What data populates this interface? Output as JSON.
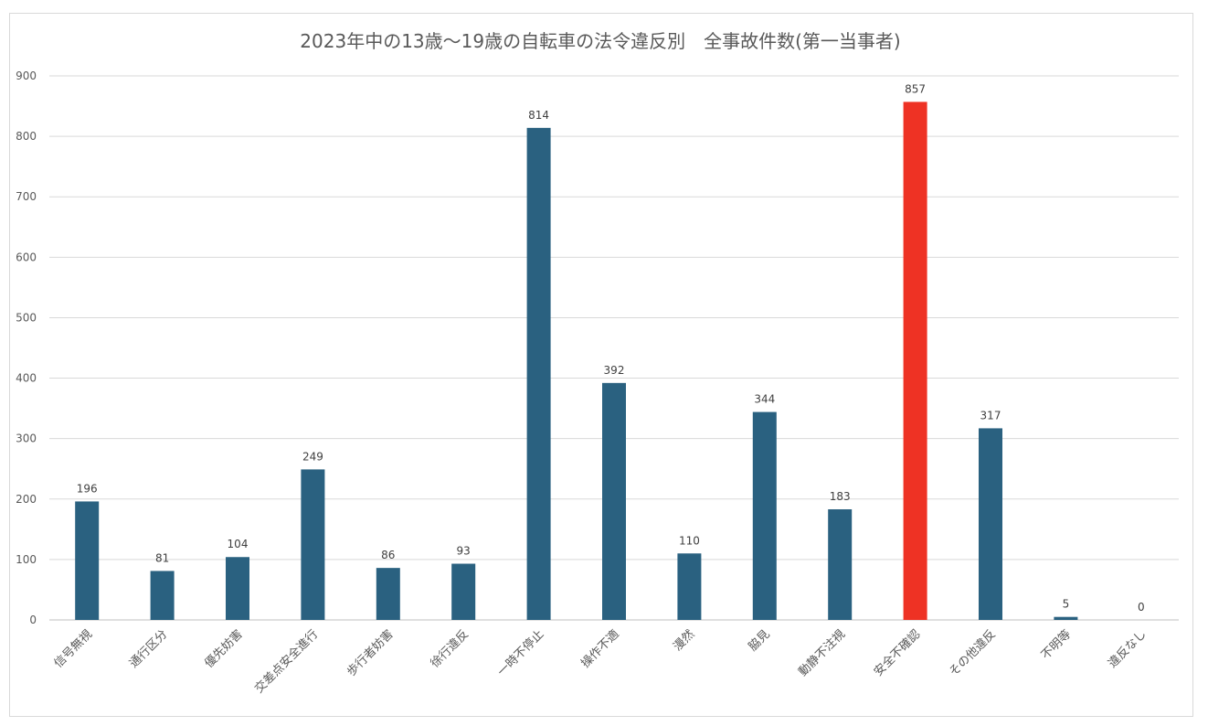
{
  "chart_data": {
    "type": "bar",
    "title": "2023年中の13歳〜19歳の自転車の法令違反別　全事故件数(第一当事者)",
    "xlabel": "",
    "ylabel": "",
    "ylim": [
      0,
      900
    ],
    "yticks": [
      0,
      100,
      200,
      300,
      400,
      500,
      600,
      700,
      800,
      900
    ],
    "grid": true,
    "legend": "none",
    "categories": [
      "信号無視",
      "通行区分",
      "優先妨害",
      "交差点安全進行",
      "歩行者妨害",
      "徐行違反",
      "一時不停止",
      "操作不適",
      "漫然",
      "脇見",
      "動静不注視",
      "安全不確認",
      "その他違反",
      "不明等",
      "違反なし"
    ],
    "values": [
      196,
      81,
      104,
      249,
      86,
      93,
      814,
      392,
      110,
      344,
      183,
      857,
      317,
      5,
      0
    ],
    "highlight_index": 11,
    "colors": {
      "bar": "#2a6180",
      "highlight": "#ee3224"
    }
  }
}
